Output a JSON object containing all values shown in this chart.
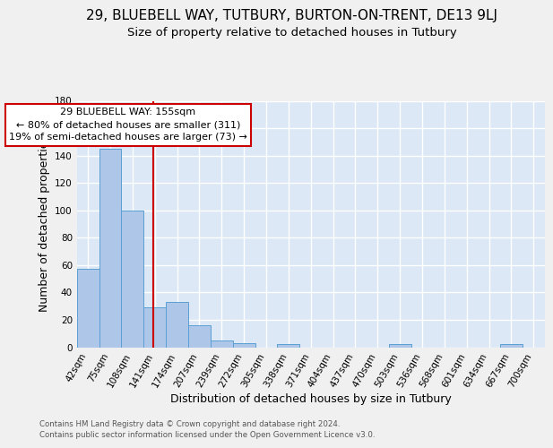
{
  "title": "29, BLUEBELL WAY, TUTBURY, BURTON-ON-TRENT, DE13 9LJ",
  "subtitle": "Size of property relative to detached houses in Tutbury",
  "xlabel": "Distribution of detached houses by size in Tutbury",
  "ylabel": "Number of detached properties",
  "footnote1": "Contains HM Land Registry data © Crown copyright and database right 2024.",
  "footnote2": "Contains public sector information licensed under the Open Government Licence v3.0.",
  "bin_labels": [
    "42sqm",
    "75sqm",
    "108sqm",
    "141sqm",
    "174sqm",
    "207sqm",
    "239sqm",
    "272sqm",
    "305sqm",
    "338sqm",
    "371sqm",
    "404sqm",
    "437sqm",
    "470sqm",
    "503sqm",
    "536sqm",
    "568sqm",
    "601sqm",
    "634sqm",
    "667sqm",
    "700sqm"
  ],
  "bar_heights": [
    57,
    145,
    100,
    29,
    33,
    16,
    5,
    3,
    0,
    2,
    0,
    0,
    0,
    0,
    2,
    0,
    0,
    0,
    0,
    2,
    0
  ],
  "bar_color": "#aec6e8",
  "bar_edge_color": "#5a9fd4",
  "ylim": [
    0,
    180
  ],
  "yticks": [
    0,
    20,
    40,
    60,
    80,
    100,
    120,
    140,
    160,
    180
  ],
  "property_line_x": 155,
  "bin_edges": [
    42,
    75,
    108,
    141,
    174,
    207,
    239,
    272,
    305,
    338,
    371,
    404,
    437,
    470,
    503,
    536,
    568,
    601,
    634,
    667,
    700
  ],
  "annotation_title": "29 BLUEBELL WAY: 155sqm",
  "annotation_line1": "← 80% of detached houses are smaller (311)",
  "annotation_line2": "19% of semi-detached houses are larger (73) →",
  "red_line_color": "#cc0000",
  "annotation_box_color": "#ffffff",
  "annotation_box_edge": "#cc0000",
  "bg_color": "#dce8f5",
  "grid_color": "#ffffff",
  "title_fontsize": 11,
  "subtitle_fontsize": 9.5,
  "axis_label_fontsize": 9,
  "tick_fontsize": 7.5,
  "annotation_fontsize": 8
}
